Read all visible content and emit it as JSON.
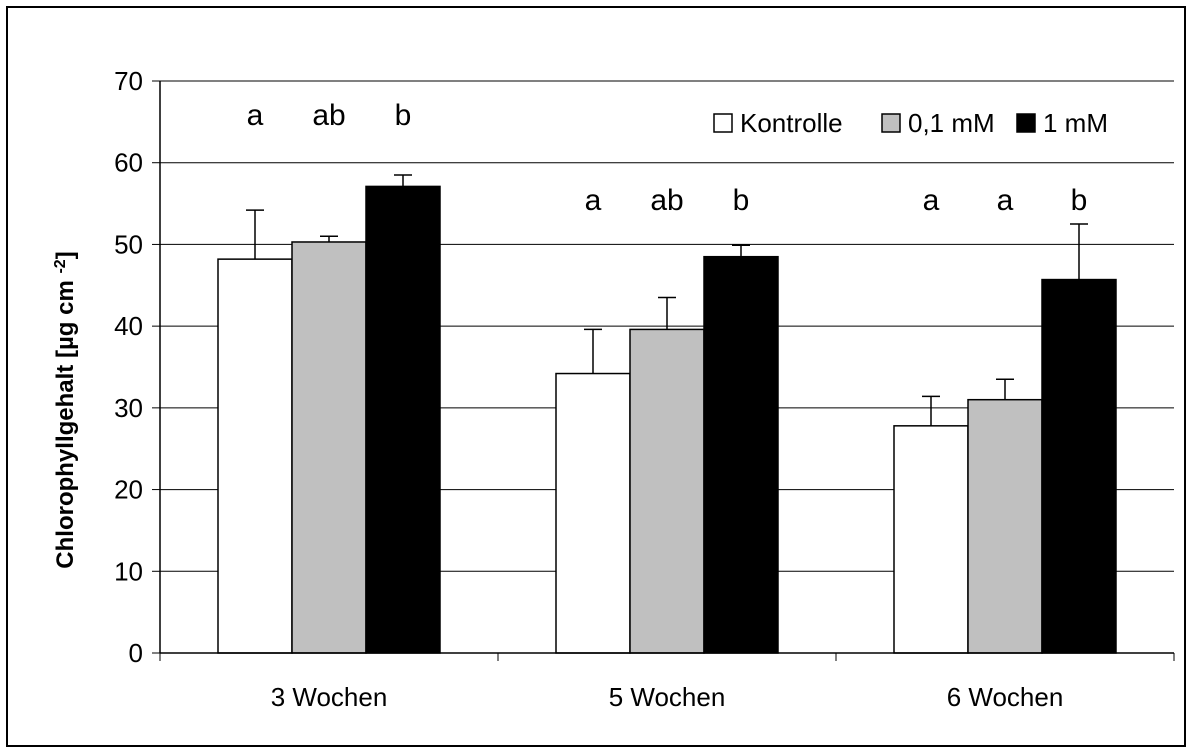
{
  "chart_data": {
    "type": "bar",
    "title": "",
    "xlabel": "",
    "ylabel": "Chlorophyllgehalt [µg cm ",
    "ylabel_sup": "-2",
    "ylabel_close": "]",
    "ylim": [
      0,
      70
    ],
    "yticks": [
      0,
      10,
      20,
      30,
      40,
      50,
      60,
      70
    ],
    "grid": true,
    "legend_position": "top-right",
    "categories": [
      "3 Wochen",
      "5 Wochen",
      "6 Wochen"
    ],
    "series": [
      {
        "name": "Kontrolle",
        "color": "#ffffff",
        "values": [
          48.2,
          34.2,
          27.8
        ],
        "errors": [
          6.0,
          5.4,
          3.6
        ],
        "letters": [
          "a",
          "a",
          "a"
        ]
      },
      {
        "name": "0,1 mM",
        "color": "#c0c0c0",
        "values": [
          50.3,
          39.6,
          31.0
        ],
        "errors": [
          0.7,
          3.9,
          2.5
        ],
        "letters": [
          "ab",
          "ab",
          "a"
        ]
      },
      {
        "name": "1 mM",
        "color": "#000000",
        "values": [
          57.1,
          48.5,
          45.7
        ],
        "errors": [
          1.4,
          1.4,
          6.8
        ],
        "letters": [
          "b",
          "b",
          "b"
        ]
      }
    ]
  }
}
